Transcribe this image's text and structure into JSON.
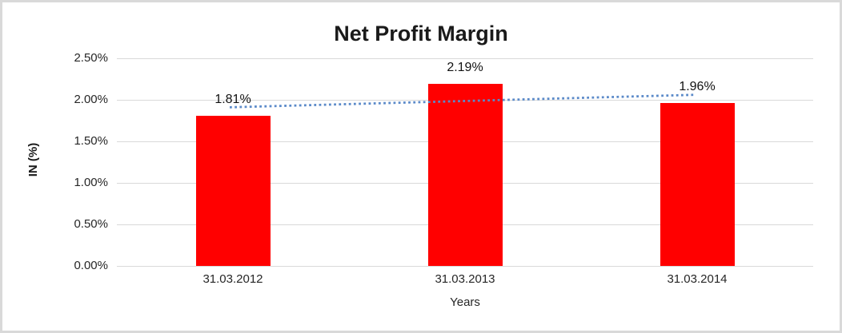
{
  "chart_data": {
    "type": "bar",
    "title": "Net Profit Margin",
    "xlabel": "Years",
    "ylabel": "IN (%)",
    "categories": [
      "31.03.2012",
      "31.03.2013",
      "31.03.2014"
    ],
    "values": [
      1.81,
      2.19,
      1.96
    ],
    "value_labels": [
      "1.81%",
      "2.19%",
      "1.96%"
    ],
    "ylim": [
      0,
      2.5
    ],
    "ytick_step": 0.5,
    "ytick_labels": [
      "0.00%",
      "0.50%",
      "1.00%",
      "1.50%",
      "2.00%",
      "2.50%"
    ],
    "grid": true,
    "legend": "none",
    "bar_color": "#ff0000",
    "trendline": {
      "kind": "linear",
      "style": "dotted",
      "color": "#5b8ac9",
      "start_value": 1.91,
      "end_value": 2.06
    }
  },
  "frame": {
    "border_color": "#d9d9d9",
    "background_color": "#ffffff",
    "gridline_color": "#d9d9d9",
    "text_color": "#262626"
  }
}
